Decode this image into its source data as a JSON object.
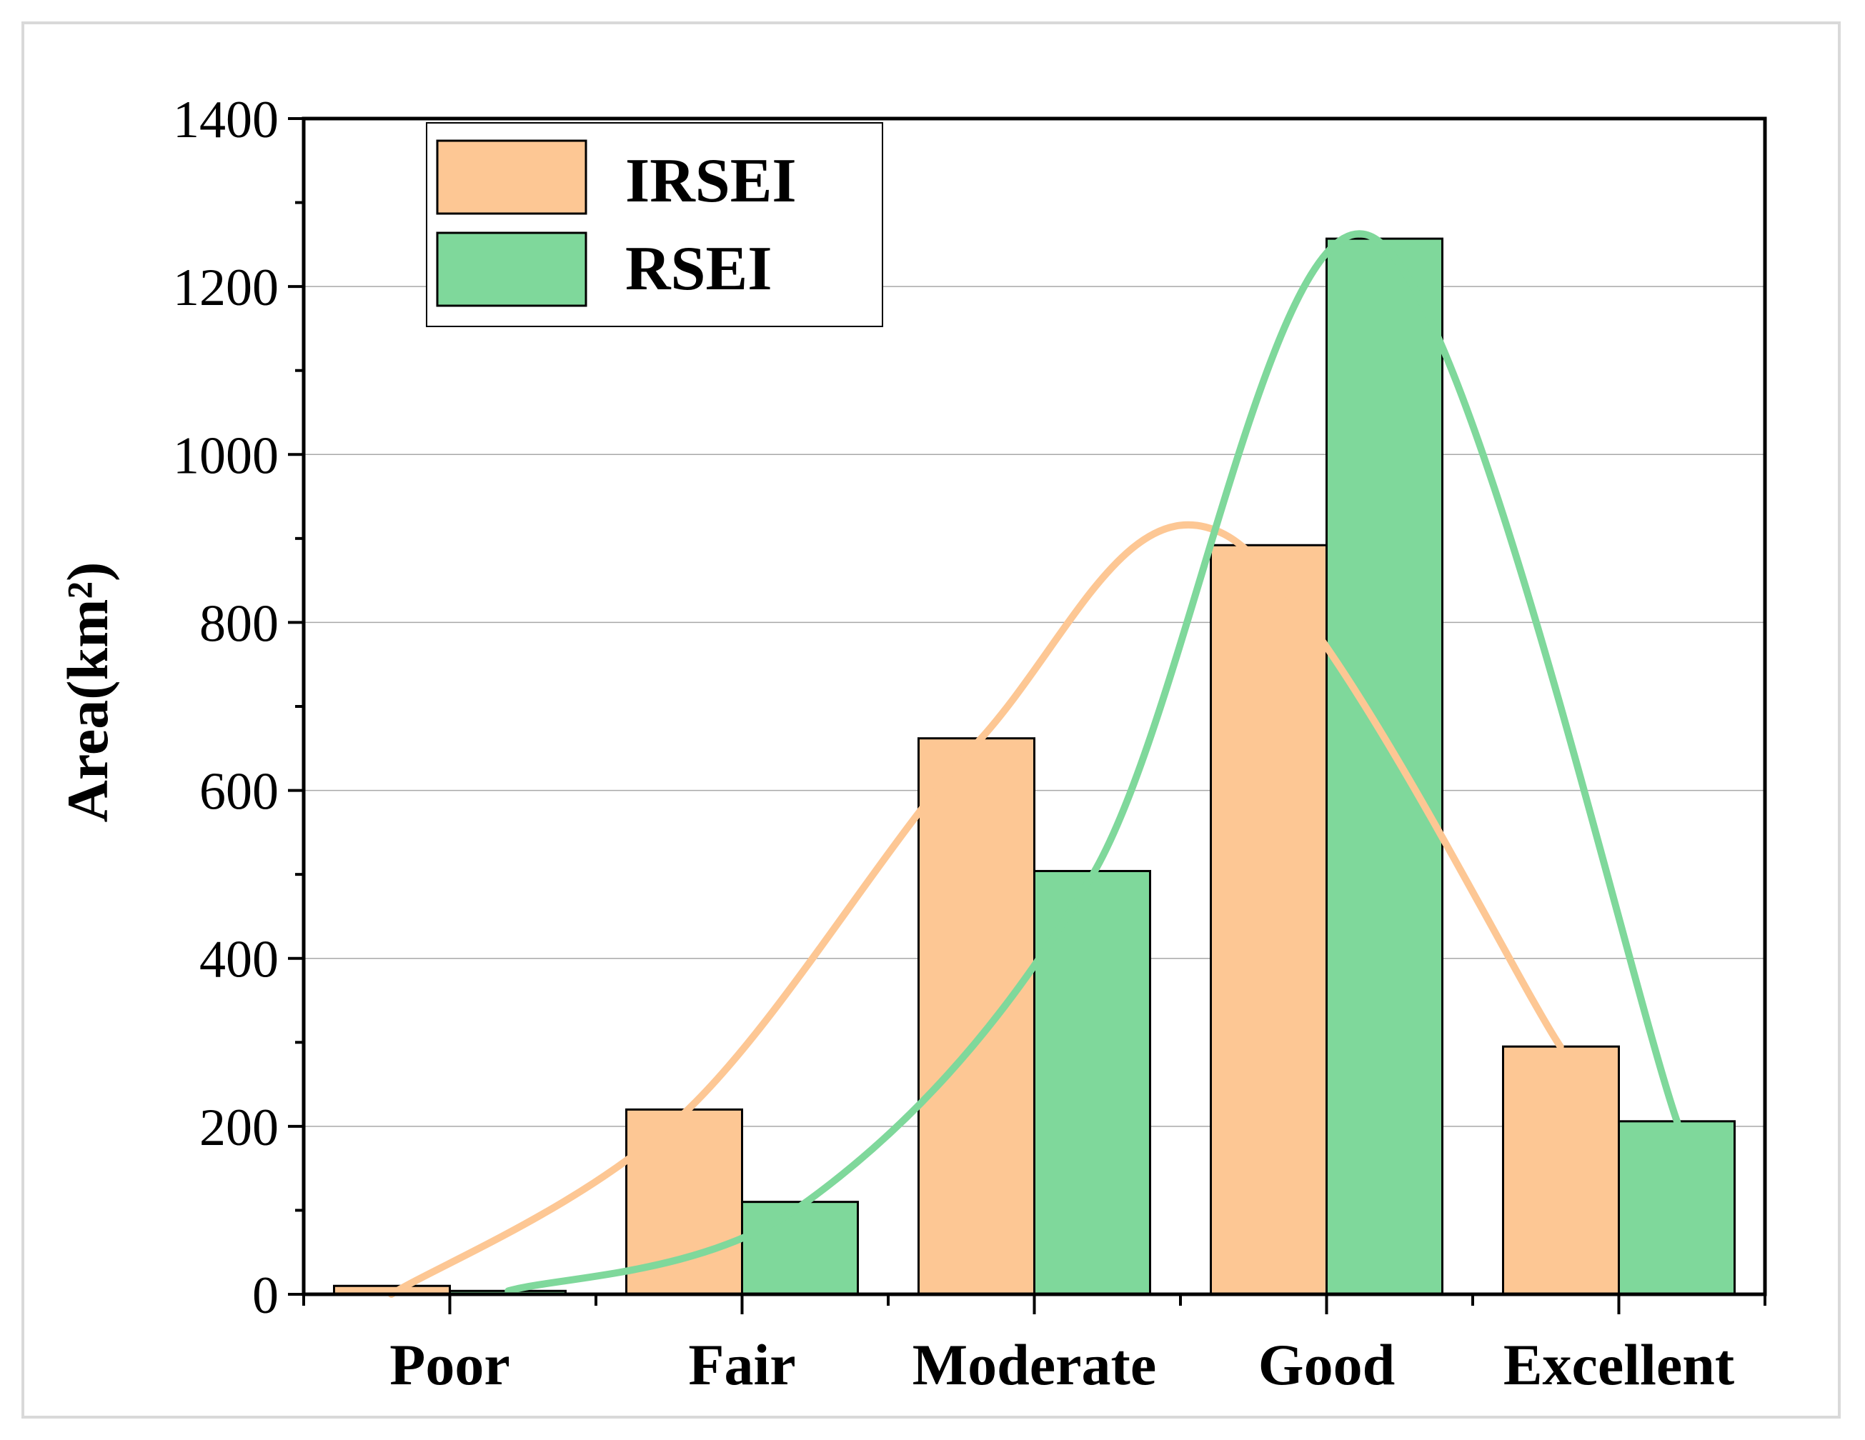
{
  "chart_data": {
    "type": "bar",
    "title": "",
    "xlabel": "",
    "ylabel": "Area(km²)",
    "categories": [
      "Poor",
      "Fair",
      "Moderate",
      "Good",
      "Excellent"
    ],
    "series": [
      {
        "name": "IRSEI",
        "values": [
          10,
          220,
          662,
          892,
          295
        ],
        "color": "#fdc794"
      },
      {
        "name": "RSEI",
        "values": [
          4,
          110,
          504,
          1257,
          206
        ],
        "color": "#7fd89b"
      }
    ],
    "curves": [
      {
        "name": "IRSEI",
        "points": [
          [
            -0.2,
            0
          ],
          [
            0.8,
            215
          ],
          [
            1.8,
            655
          ],
          [
            2.65,
            905
          ],
          [
            3.8,
            295
          ]
        ],
        "color": "#fdc794"
      },
      {
        "name": "RSEI",
        "points": [
          [
            0.2,
            4
          ],
          [
            1.2,
            105
          ],
          [
            2.2,
            500
          ],
          [
            3.15,
            1260
          ],
          [
            4.2,
            205
          ]
        ],
        "color": "#7fd89b"
      }
    ],
    "ylim": [
      0,
      1400
    ],
    "yticks": [
      0,
      200,
      400,
      600,
      800,
      1000,
      1200,
      1400
    ],
    "grid": true,
    "legend_position": "top-left"
  }
}
